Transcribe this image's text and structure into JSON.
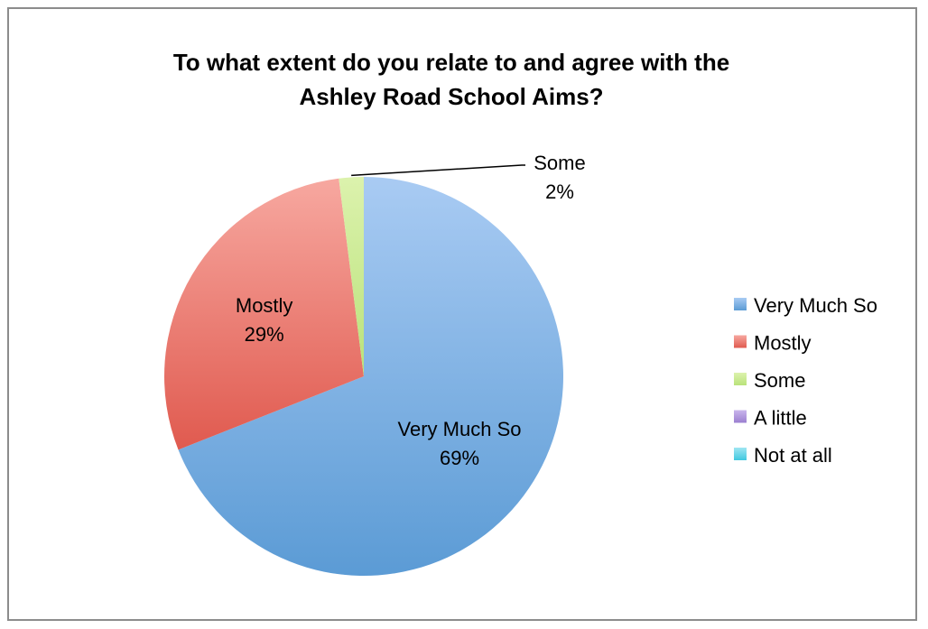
{
  "chart_data": {
    "type": "pie",
    "title": "To what extent do you relate to and agree with the Ashley Road School Aims?",
    "title_lines": [
      "To what extent do you relate to and agree with the",
      "Ashley Road School Aims?"
    ],
    "categories": [
      "Very Much So",
      "Mostly",
      "Some",
      "A little",
      "Not at all"
    ],
    "values": [
      69,
      29,
      2,
      0,
      0
    ],
    "value_labels": [
      "69%",
      "29%",
      "2%",
      "",
      ""
    ],
    "unit": "%",
    "legend_position": "right",
    "colors": [
      "#5b9bd5",
      "#e05a4f",
      "#b9e27a",
      "#9b7fd0",
      "#40c8e0"
    ],
    "colors_light": [
      "#a9cbf3",
      "#f7a8a0",
      "#dcf2ad",
      "#c9b5ec",
      "#9fe6f2"
    ]
  }
}
